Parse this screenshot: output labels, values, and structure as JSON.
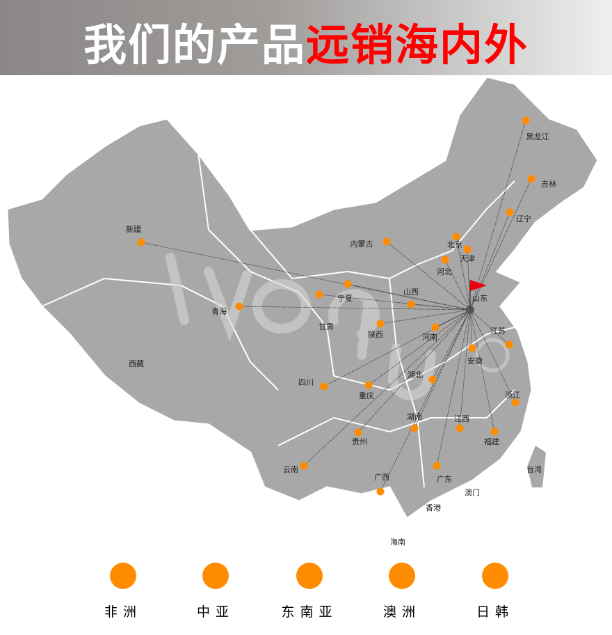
{
  "title": {
    "white": "我们的产品",
    "red": "远销海内外"
  },
  "colors": {
    "dot": "#ff8c00",
    "flag": "#e8000d",
    "land": "#a8a8a8",
    "border": "#ffffff"
  },
  "hub": {
    "label": "山东",
    "icon": "flag-icon"
  },
  "provinces": [
    {
      "name": "黑龙江",
      "dot": true
    },
    {
      "name": "吉林",
      "dot": true
    },
    {
      "name": "辽宁",
      "dot": true
    },
    {
      "name": "内蒙古",
      "dot": true
    },
    {
      "name": "北京",
      "dot": true
    },
    {
      "name": "天津",
      "dot": true
    },
    {
      "name": "河北",
      "dot": true
    },
    {
      "name": "宁夏",
      "dot": true
    },
    {
      "name": "甘肃",
      "dot": true
    },
    {
      "name": "青海",
      "dot": true
    },
    {
      "name": "山西",
      "dot": true
    },
    {
      "name": "陕西",
      "dot": true
    },
    {
      "name": "河南",
      "dot": true
    },
    {
      "name": "江苏",
      "dot": true
    },
    {
      "name": "安徽",
      "dot": true
    },
    {
      "name": "湖北",
      "dot": true
    },
    {
      "name": "四川",
      "dot": true
    },
    {
      "name": "重庆",
      "dot": true
    },
    {
      "name": "浙江",
      "dot": true
    },
    {
      "name": "湖南",
      "dot": true
    },
    {
      "name": "江西",
      "dot": true
    },
    {
      "name": "贵州",
      "dot": true
    },
    {
      "name": "福建",
      "dot": true
    },
    {
      "name": "云南",
      "dot": true
    },
    {
      "name": "广西",
      "dot": true
    },
    {
      "name": "广东",
      "dot": true
    },
    {
      "name": "新疆",
      "dot": true
    },
    {
      "name": "西藏",
      "dot": false
    },
    {
      "name": "台湾",
      "dot": false
    },
    {
      "name": "澳门",
      "dot": false
    },
    {
      "name": "香港",
      "dot": false
    },
    {
      "name": "海南",
      "dot": false
    }
  ],
  "legend": [
    "非洲",
    "中亚",
    "东南亚",
    "澳洲",
    "日韩"
  ]
}
